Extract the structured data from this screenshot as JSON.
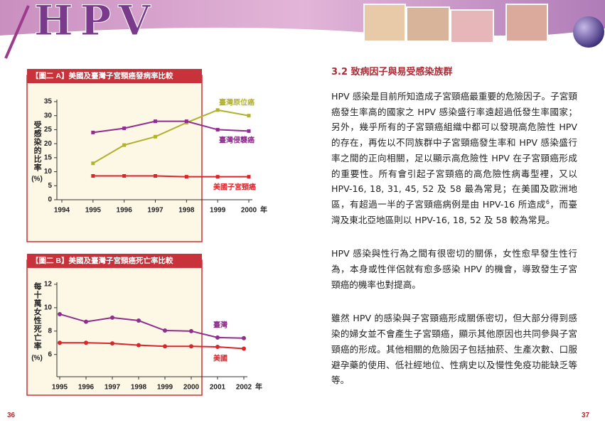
{
  "header": {
    "logo": "HPV"
  },
  "chart_data": [
    {
      "type": "line",
      "title": "【圖二 A】美國及臺灣子宮頸癌發病率比較",
      "ylabel": "受感染的比率",
      "ylabel_unit": "(%)",
      "x_unit": "年",
      "x": [
        1995,
        1996,
        1997,
        1998,
        1999,
        2000
      ],
      "xlim": [
        1994,
        2000
      ],
      "xticks": [
        1994,
        1995,
        1996,
        1997,
        1998,
        1999,
        2000
      ],
      "ylim": [
        0,
        35
      ],
      "yticks": [
        0,
        5,
        10,
        15,
        20,
        25,
        30,
        35
      ],
      "marker": "square",
      "series": [
        {
          "name": "臺灣原位癌",
          "color": "#b2b22e",
          "values": [
            13,
            19.5,
            22.5,
            27.5,
            32,
            30
          ]
        },
        {
          "name": "臺灣侵襲癌",
          "color": "#8e2f8e",
          "values": [
            24,
            25.5,
            28,
            28,
            25,
            24.5
          ]
        },
        {
          "name": "美國子宮頸癌",
          "color": "#d9262c",
          "values": [
            8.5,
            8.5,
            8.5,
            8.2,
            8.2,
            8.2
          ]
        }
      ]
    },
    {
      "type": "line",
      "title": "【圖二 B】美國及臺灣子宮頸癌死亡率比較",
      "ylabel": "每十萬女性死亡率",
      "ylabel_unit": "(%)",
      "x_unit": "年",
      "x": [
        1995,
        1996,
        1997,
        1998,
        1999,
        2000,
        2001,
        2002
      ],
      "xlim": [
        1995,
        2002
      ],
      "xticks": [
        1995,
        1996,
        1997,
        1998,
        1999,
        2000,
        2001,
        2002
      ],
      "ylim": [
        4.1,
        12
      ],
      "yticks": [
        6,
        8,
        10,
        12
      ],
      "marker": "circle",
      "series": [
        {
          "name": "臺灣",
          "color": "#8e2f8e",
          "values": [
            9.45,
            8.8,
            9.15,
            8.9,
            8.05,
            8.0,
            7.45,
            7.4
          ]
        },
        {
          "name": "美國",
          "color": "#d9262c",
          "values": [
            7.0,
            7.0,
            6.95,
            6.8,
            6.7,
            6.7,
            6.65,
            6.5
          ]
        }
      ]
    }
  ],
  "section": {
    "title": "3.2 致病因子與易受感染族群",
    "paragraphs": [
      {
        "text": "HPV 感染是目前所知造成子宮頸癌最重要的危險因子。子宮頸癌發生率高的國家之 HPV 感染盛行率遠超過低發生率國家；另外，幾乎所有的子宮頸癌組織中都可以發現高危險性 HPV 的存在，再佐以不同族群中子宮頸癌發生率和 HPV 感染盛行率之間的正向相關，足以顯示高危險性 HPV 在子宮頸癌形成的重要性。所有會引起子宮頸癌的高危險性病毒型裡，又以 HPV-16, 18, 31, 45, 52 及 58 最為常見；在美國及歐洲地區，有超過一半的子宮頸癌病例是由 HPV-16 所造成",
        "ref": "6",
        "after": "，而臺灣及東北亞地區則以 HPV-16, 18, 52 及 58 較為常見。"
      },
      {
        "text": "HPV 感染與性行為之間有很密切的關係，女性愈早發生性行為，本身或性伴侶就有愈多感染 HPV 的機會，導致發生子宮頸癌的機率也對提高。"
      },
      {
        "text": "雖然 HPV 的感染與子宮頸癌形成關係密切，但大部分得到感染的婦女並不會產生子宮頸癌，顯示其他原因也共同參與子宮頸癌的形成。其他相關的危險因子包括抽菸、生產次數、口服避孕藥的使用、低社經地位、性病史以及慢性免疫功能缺乏等等。"
      }
    ]
  },
  "page_numbers": {
    "left": "36",
    "right": "37"
  }
}
